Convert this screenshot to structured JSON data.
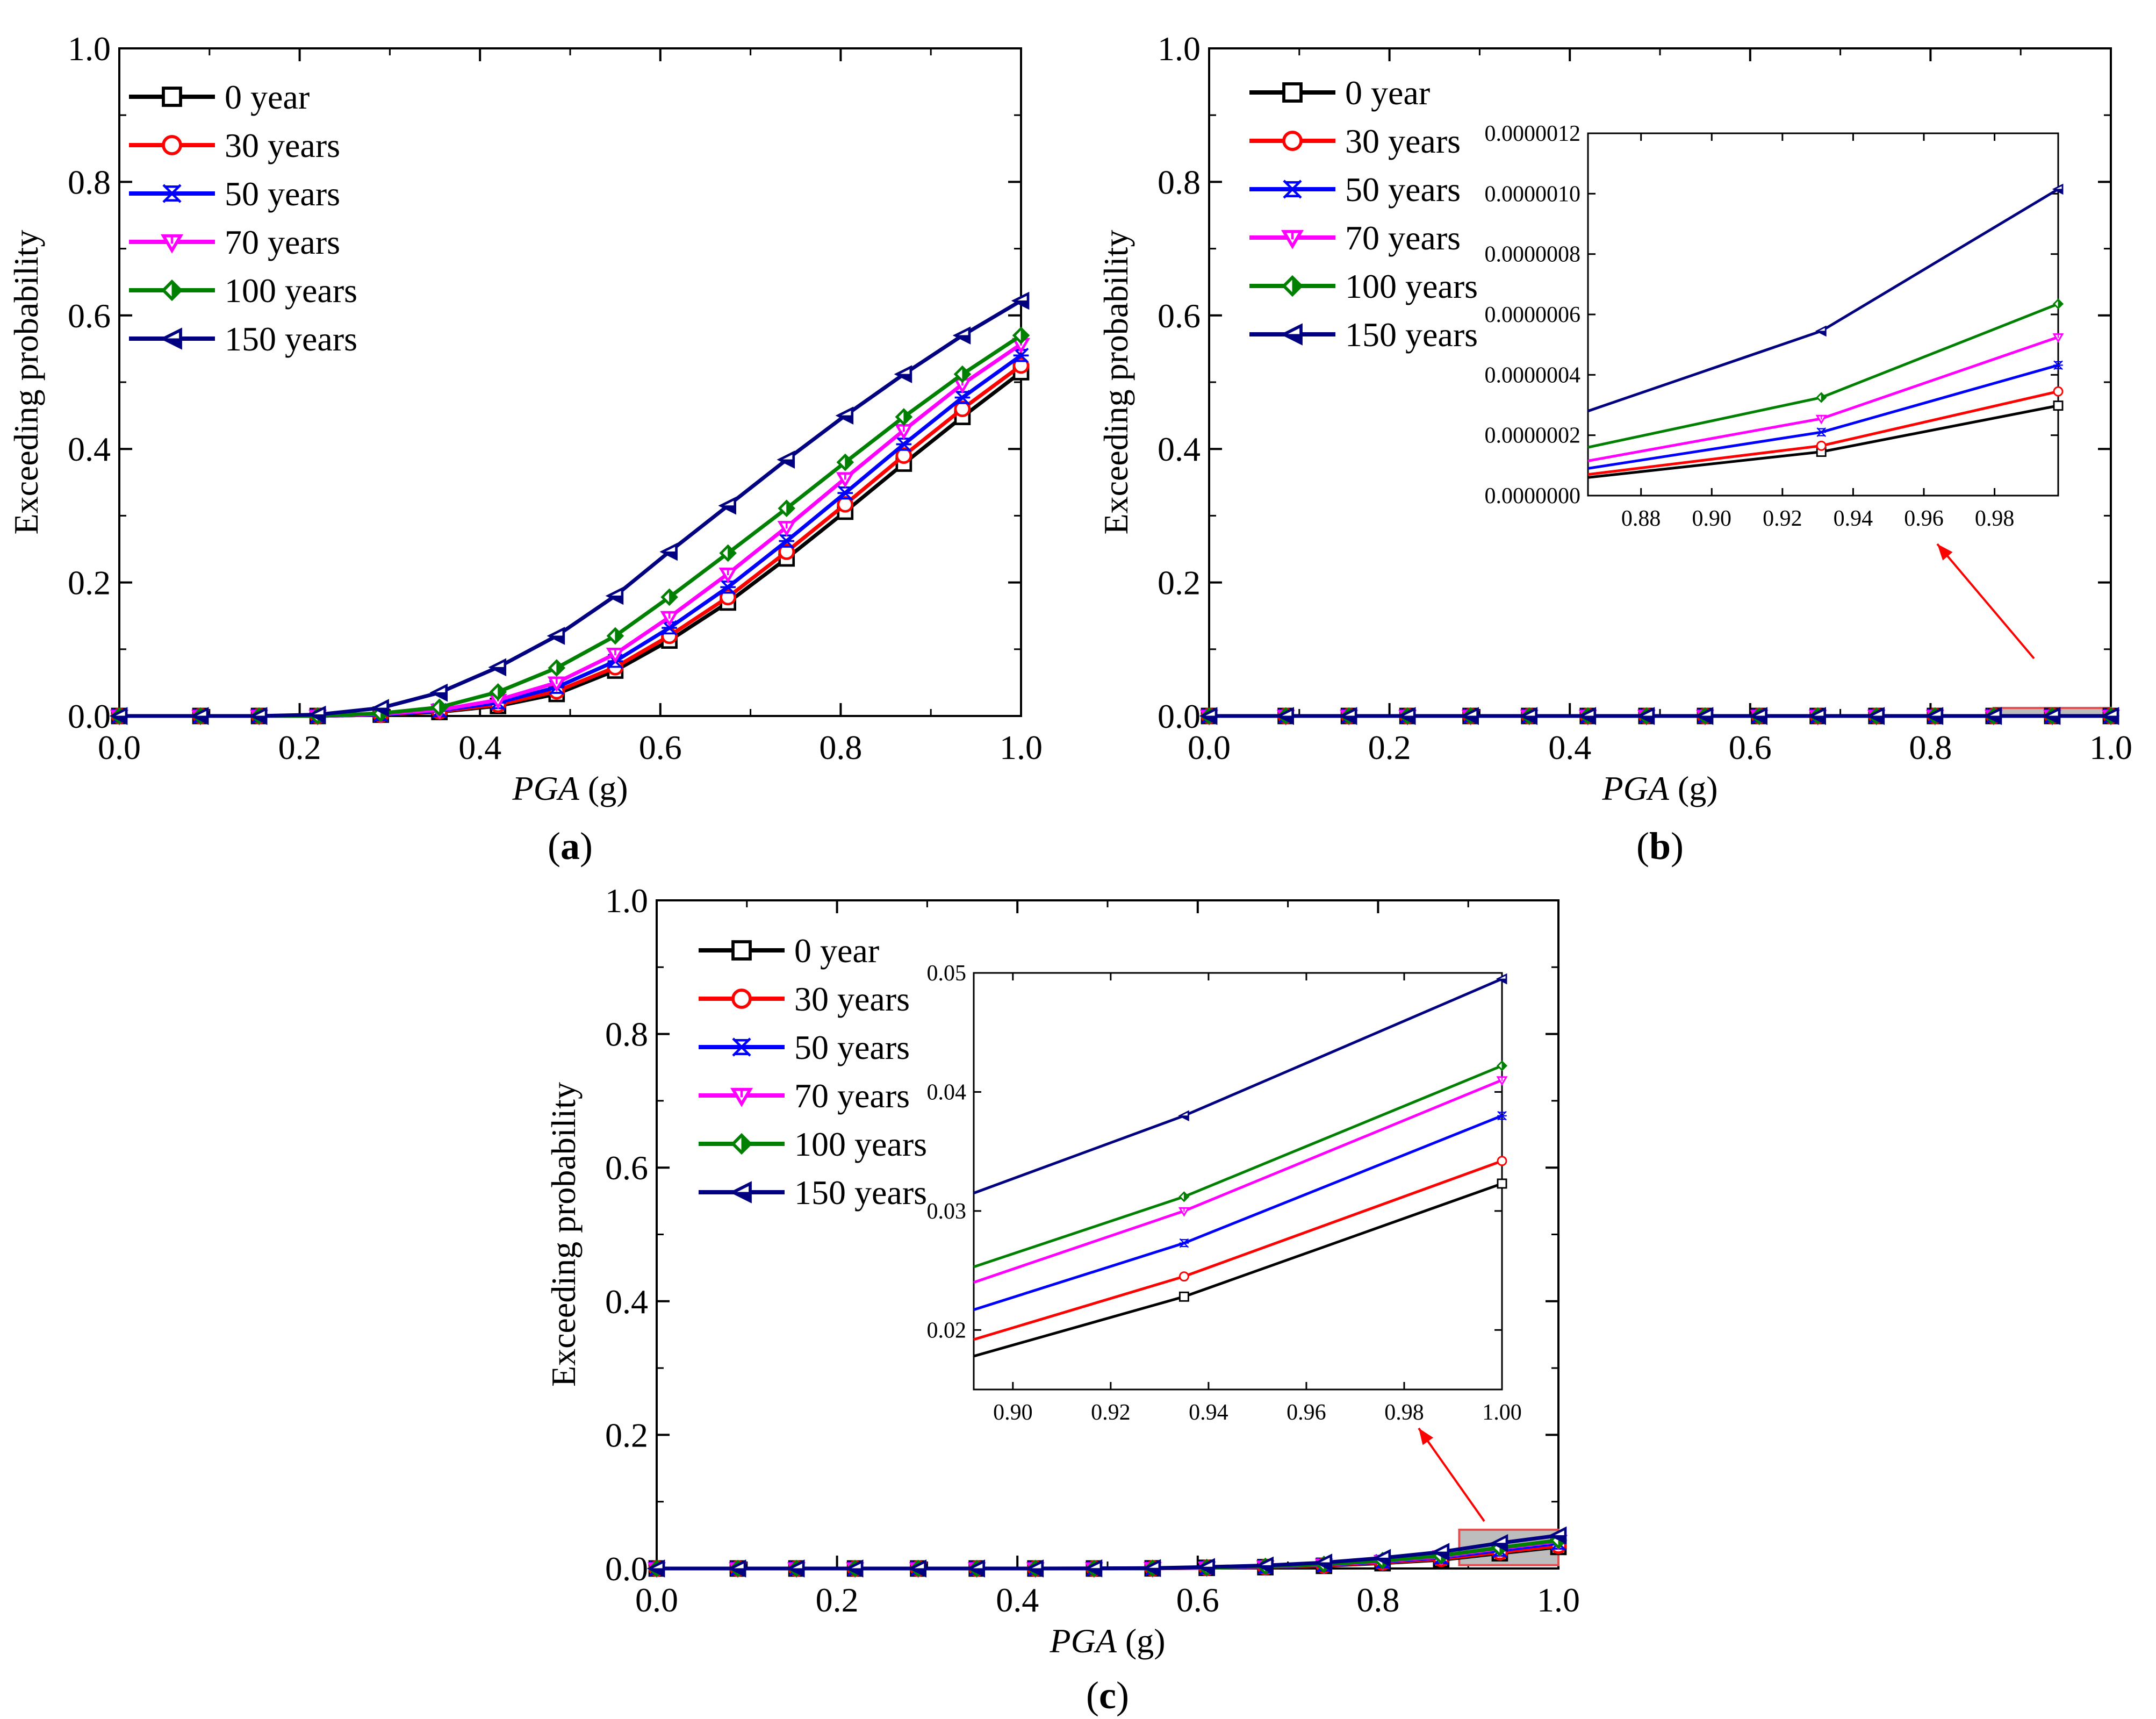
{
  "figure": {
    "panel_labels": [
      "a",
      "b",
      "c"
    ],
    "colors": {
      "0 year": "#000000",
      "30 years": "#ff0000",
      "50 years": "#0000ff",
      "70 years": "#ff00ff",
      "100 years": "#008000",
      "150 years": "#000080",
      "highlight_fill": "#bdbdbd",
      "highlight_stroke": "#e05050",
      "arrow": "#ff0000"
    }
  },
  "chart_data": [
    {
      "panel": "a",
      "type": "line",
      "title": "",
      "xlabel_italic": "PGA",
      "xlabel_unit": " (g)",
      "ylabel": "Exceeding probability",
      "xlim": [
        0,
        1.0
      ],
      "ylim": [
        0,
        1.0
      ],
      "xticks": [
        "0.0",
        "0.2",
        "0.4",
        "0.6",
        "0.8",
        "1.0"
      ],
      "yticks": [
        "0.0",
        "0.2",
        "0.4",
        "0.6",
        "0.8",
        "1.0"
      ],
      "x": [
        0.0,
        0.09,
        0.155,
        0.22,
        0.29,
        0.355,
        0.42,
        0.485,
        0.55,
        0.61,
        0.675,
        0.74,
        0.805,
        0.87,
        0.935,
        1.0
      ],
      "series": [
        {
          "name": "0 year",
          "marker": "square",
          "values": [
            0,
            0,
            0,
            0,
            0.002,
            0.006,
            0.015,
            0.033,
            0.068,
            0.113,
            0.17,
            0.236,
            0.306,
            0.378,
            0.448,
            0.515
          ]
        },
        {
          "name": "30 years",
          "marker": "circle",
          "values": [
            0,
            0,
            0,
            0,
            0.002,
            0.007,
            0.017,
            0.037,
            0.073,
            0.12,
            0.178,
            0.246,
            0.317,
            0.39,
            0.46,
            0.525
          ]
        },
        {
          "name": "50 years",
          "marker": "star",
          "values": [
            0,
            0,
            0,
            0,
            0.002,
            0.008,
            0.02,
            0.043,
            0.082,
            0.132,
            0.193,
            0.262,
            0.334,
            0.407,
            0.477,
            0.54
          ]
        },
        {
          "name": "70 years",
          "marker": "tri-down",
          "values": [
            0,
            0,
            0,
            0,
            0.003,
            0.009,
            0.024,
            0.05,
            0.093,
            0.148,
            0.213,
            0.283,
            0.356,
            0.428,
            0.497,
            0.557
          ]
        },
        {
          "name": "100 years",
          "marker": "diamond-half",
          "values": [
            0,
            0,
            0,
            0,
            0.004,
            0.013,
            0.036,
            0.072,
            0.12,
            0.178,
            0.244,
            0.311,
            0.38,
            0.448,
            0.512,
            0.57
          ]
        },
        {
          "name": "150 years",
          "marker": "tri-left-half",
          "values": [
            0,
            0,
            0,
            0.002,
            0.012,
            0.035,
            0.073,
            0.12,
            0.18,
            0.246,
            0.315,
            0.384,
            0.45,
            0.512,
            0.57,
            0.622
          ]
        }
      ]
    },
    {
      "panel": "b",
      "type": "line",
      "title": "",
      "xlabel_italic": "PGA",
      "xlabel_unit": " (g)",
      "ylabel": "Exceeding probability",
      "xlim": [
        0,
        1.0
      ],
      "ylim": [
        0,
        1.0
      ],
      "xticks": [
        "0.0",
        "0.2",
        "0.4",
        "0.6",
        "0.8",
        "1.0"
      ],
      "yticks": [
        "0.0",
        "0.2",
        "0.4",
        "0.6",
        "0.8",
        "1.0"
      ],
      "x": [
        0.0,
        0.085,
        0.155,
        0.22,
        0.29,
        0.355,
        0.42,
        0.485,
        0.55,
        0.61,
        0.675,
        0.74,
        0.805,
        0.87,
        0.935,
        1.0
      ],
      "series": [
        {
          "name": "0 year",
          "marker": "square",
          "values": [
            0,
            0,
            0,
            0,
            0,
            0,
            0,
            0,
            0,
            0,
            0,
            0,
            0,
            0,
            0,
            0
          ]
        },
        {
          "name": "30 years",
          "marker": "circle",
          "values": [
            0,
            0,
            0,
            0,
            0,
            0,
            0,
            0,
            0,
            0,
            0,
            0,
            0,
            0,
            0,
            0
          ]
        },
        {
          "name": "50 years",
          "marker": "star",
          "values": [
            0,
            0,
            0,
            0,
            0,
            0,
            0,
            0,
            0,
            0,
            0,
            0,
            0,
            0,
            0,
            0
          ]
        },
        {
          "name": "70 years",
          "marker": "tri-down",
          "values": [
            0,
            0,
            0,
            0,
            0,
            0,
            0,
            0,
            0,
            0,
            0,
            0,
            0,
            0,
            0,
            0
          ]
        },
        {
          "name": "100 years",
          "marker": "diamond-half",
          "values": [
            0,
            0,
            0,
            0,
            0,
            0,
            0,
            0,
            0,
            0,
            0,
            0,
            0,
            0,
            0,
            0
          ]
        },
        {
          "name": "150 years",
          "marker": "tri-left-half",
          "values": [
            0,
            0,
            0,
            0,
            0,
            0,
            0,
            0,
            0,
            0,
            0,
            0,
            0,
            0,
            0,
            0
          ]
        }
      ],
      "highlight_region": {
        "x": [
          0.87,
          1.0
        ],
        "y": [
          0,
          0.012
        ]
      },
      "inset": {
        "xlim": [
          0.865,
          0.998
        ],
        "ylim": [
          0,
          1.2e-06
        ],
        "xticks": [
          "0.88",
          "0.90",
          "0.92",
          "0.94",
          "0.96",
          "0.98"
        ],
        "xtick_values": [
          0.88,
          0.9,
          0.92,
          0.94,
          0.96,
          0.98
        ],
        "yticks": [
          "0.0000000",
          "0.0000002",
          "0.0000004",
          "0.0000006",
          "0.0000008",
          "0.0000010",
          "0.0000012"
        ],
        "ytick_values": [
          0,
          2e-07,
          4e-07,
          6e-07,
          8e-07,
          1e-06,
          1.2e-06
        ],
        "x": [
          0.865,
          0.931,
          0.998
        ],
        "series": [
          {
            "name": "0 year",
            "values": [
              6e-08,
              1.45e-07,
              2.98e-07
            ]
          },
          {
            "name": "30 years",
            "values": [
              7e-08,
              1.65e-07,
              3.45e-07
            ]
          },
          {
            "name": "50 years",
            "values": [
              9e-08,
              2.1e-07,
              4.32e-07
            ]
          },
          {
            "name": "70 years",
            "values": [
              1.15e-07,
              2.55e-07,
              5.25e-07
            ]
          },
          {
            "name": "100 years",
            "values": [
              1.6e-07,
              3.25e-07,
              6.35e-07
            ]
          },
          {
            "name": "150 years",
            "values": [
              2.8e-07,
              5.45e-07,
              1.015e-06
            ]
          }
        ]
      }
    },
    {
      "panel": "c",
      "type": "line",
      "title": "",
      "xlabel_italic": "PGA",
      "xlabel_unit": " (g)",
      "ylabel": "Exceeding probability",
      "xlim": [
        0,
        1.0
      ],
      "ylim": [
        0,
        1.0
      ],
      "xticks": [
        "0.0",
        "0.2",
        "0.4",
        "0.6",
        "0.8",
        "1.0"
      ],
      "yticks": [
        "0.0",
        "0.2",
        "0.4",
        "0.6",
        "0.8",
        "1.0"
      ],
      "x": [
        0.0,
        0.09,
        0.155,
        0.22,
        0.29,
        0.355,
        0.42,
        0.485,
        0.55,
        0.61,
        0.675,
        0.74,
        0.805,
        0.87,
        0.935,
        1.0
      ],
      "series": [
        {
          "name": "0 year",
          "marker": "square",
          "values": [
            0,
            0,
            0,
            0,
            0,
            0,
            0,
            0,
            0.0002,
            0.001,
            0.002,
            0.004,
            0.008,
            0.013,
            0.0228,
            0.0323
          ]
        },
        {
          "name": "30 years",
          "marker": "circle",
          "values": [
            0,
            0,
            0,
            0,
            0,
            0,
            0,
            0,
            0.0002,
            0.001,
            0.0022,
            0.0045,
            0.009,
            0.0145,
            0.0245,
            0.0342
          ]
        },
        {
          "name": "50 years",
          "marker": "star",
          "values": [
            0,
            0,
            0,
            0,
            0,
            0,
            0,
            0,
            0.0003,
            0.0012,
            0.0026,
            0.0052,
            0.0102,
            0.0165,
            0.0273,
            0.038
          ]
        },
        {
          "name": "70 years",
          "marker": "tri-down",
          "values": [
            0,
            0,
            0,
            0,
            0,
            0,
            0,
            0,
            0.0003,
            0.0013,
            0.0029,
            0.0057,
            0.011,
            0.018,
            0.03,
            0.041
          ]
        },
        {
          "name": "100 years",
          "marker": "diamond-half",
          "values": [
            0,
            0,
            0,
            0,
            0,
            0,
            0,
            0,
            0.0004,
            0.0015,
            0.0032,
            0.0062,
            0.0118,
            0.0192,
            0.0312,
            0.0422
          ]
        },
        {
          "name": "150 years",
          "marker": "tri-left-half",
          "values": [
            0,
            0,
            0,
            0,
            0,
            0,
            0,
            0.0002,
            0.0006,
            0.0022,
            0.0045,
            0.0088,
            0.0158,
            0.0248,
            0.038,
            0.0495
          ]
        }
      ],
      "highlight_region": {
        "x": [
          0.89,
          1.0
        ],
        "y": [
          0.005,
          0.058
        ]
      },
      "inset": {
        "xlim": [
          0.892,
          1.0
        ],
        "ylim": [
          0.015,
          0.05
        ],
        "xticks": [
          "0.90",
          "0.92",
          "0.94",
          "0.96",
          "0.98",
          "1.00"
        ],
        "xtick_values": [
          0.9,
          0.92,
          0.94,
          0.96,
          0.98,
          1.0
        ],
        "yticks": [
          "0.02",
          "0.03",
          "0.04",
          "0.05"
        ],
        "ytick_values": [
          0.02,
          0.03,
          0.04,
          0.05
        ],
        "x": [
          0.892,
          0.935,
          1.0
        ],
        "series": [
          {
            "name": "0 year",
            "values": [
              0.0178,
              0.0228,
              0.0323
            ]
          },
          {
            "name": "30 years",
            "values": [
              0.0192,
              0.0245,
              0.0342
            ]
          },
          {
            "name": "50 years",
            "values": [
              0.0217,
              0.0273,
              0.038
            ]
          },
          {
            "name": "70 years",
            "values": [
              0.024,
              0.03,
              0.041
            ]
          },
          {
            "name": "100 years",
            "values": [
              0.0253,
              0.0312,
              0.0422
            ]
          },
          {
            "name": "150 years",
            "values": [
              0.0315,
              0.038,
              0.0495
            ]
          }
        ]
      }
    }
  ]
}
